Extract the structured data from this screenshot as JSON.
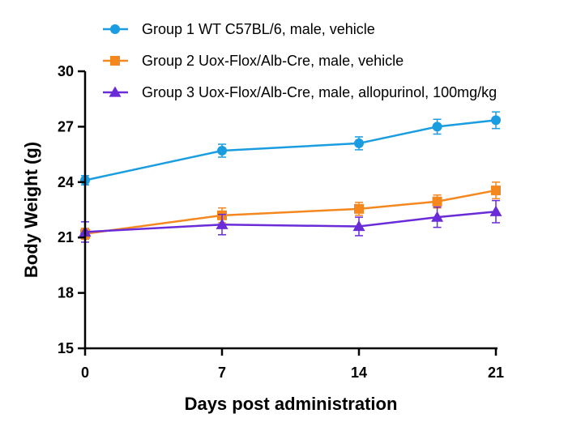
{
  "chart_data": {
    "type": "line",
    "title": "",
    "xlabel": "Days post administration",
    "ylabel": "Body Weight (g)",
    "xlim": [
      0,
      21
    ],
    "ylim": [
      15,
      30
    ],
    "xticks": [
      0,
      7,
      14,
      21
    ],
    "yticks": [
      15,
      18,
      21,
      24,
      27,
      30
    ],
    "grid": false,
    "legend_position": "top",
    "series": [
      {
        "name": "Group 1 WT C57BL/6, male, vehicle",
        "color": "#1a9de0",
        "marker": "circle",
        "x": [
          0,
          7,
          14,
          18,
          21
        ],
        "y": [
          24.1,
          25.7,
          26.1,
          27.0,
          27.35
        ],
        "err": [
          0.25,
          0.35,
          0.35,
          0.4,
          0.45
        ]
      },
      {
        "name": "Group 2 Uox-Flox/Alb-Cre, male, vehicle",
        "color": "#f5871f",
        "marker": "square",
        "x": [
          0,
          7,
          14,
          18,
          21
        ],
        "y": [
          21.2,
          22.2,
          22.55,
          22.95,
          23.55
        ],
        "err": [
          0.3,
          0.4,
          0.35,
          0.35,
          0.45
        ]
      },
      {
        "name": "Group 3 Uox-Flox/Alb-Cre, male, allopurinol, 100mg/kg",
        "color": "#6a2bd9",
        "marker": "triangle",
        "x": [
          0,
          7,
          14,
          18,
          21
        ],
        "y": [
          21.3,
          21.7,
          21.6,
          22.1,
          22.4
        ],
        "err": [
          0.55,
          0.55,
          0.5,
          0.55,
          0.6
        ]
      }
    ]
  }
}
